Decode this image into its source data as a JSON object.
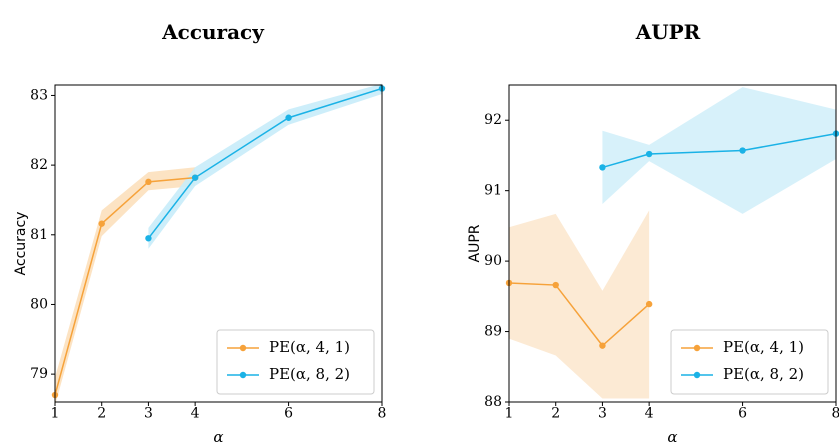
{
  "chart_data": [
    {
      "type": "line",
      "title": "Accuracy",
      "xlabel": "α",
      "ylabel": "Accuracy",
      "xlim": [
        1,
        8
      ],
      "ylim": [
        78.6,
        83.15
      ],
      "xticks": [
        1,
        2,
        3,
        4,
        6,
        8
      ],
      "yticks": [
        79,
        80,
        81,
        82,
        83
      ],
      "grid": false,
      "legend_position": "bottom-right",
      "series": [
        {
          "name": "PE(α, 4, 1)",
          "color": "#f6a23a",
          "band_color": "#fce0bd",
          "x": [
            1,
            2,
            3,
            4
          ],
          "y": [
            78.7,
            81.16,
            81.76,
            81.82
          ],
          "lower": [
            78.55,
            80.98,
            81.64,
            81.7
          ],
          "upper": [
            78.95,
            81.35,
            81.9,
            81.97
          ]
        },
        {
          "name": "PE(α, 8, 2)",
          "color": "#1ab2e6",
          "band_color": "#c8ecfa",
          "x": [
            3,
            4,
            6,
            8
          ],
          "y": [
            80.95,
            81.82,
            82.68,
            83.1
          ],
          "lower": [
            80.8,
            81.7,
            82.58,
            83.02
          ],
          "upper": [
            81.1,
            81.97,
            82.8,
            83.17
          ]
        }
      ]
    },
    {
      "type": "line",
      "title": "AUPR",
      "xlabel": "α",
      "ylabel": "AUPR",
      "xlim": [
        1,
        8
      ],
      "ylim": [
        88,
        92.5
      ],
      "xticks": [
        1,
        2,
        3,
        4,
        6,
        8
      ],
      "yticks": [
        88,
        89,
        90,
        91,
        92
      ],
      "grid": false,
      "legend_position": "bottom-right",
      "series": [
        {
          "name": "PE(α, 4, 1)",
          "color": "#f6a23a",
          "band_color": "#fce8cf",
          "x": [
            1,
            2,
            3,
            4
          ],
          "y": [
            89.69,
            89.66,
            88.8,
            89.39
          ],
          "lower": [
            88.9,
            88.66,
            88.05,
            88.05
          ],
          "upper": [
            90.48,
            90.67,
            89.58,
            90.72
          ]
        },
        {
          "name": "PE(α, 8, 2)",
          "color": "#1ab2e6",
          "band_color": "#d3eff9",
          "x": [
            3,
            4,
            6,
            8
          ],
          "y": [
            91.33,
            91.52,
            91.57,
            91.81
          ],
          "lower": [
            90.81,
            91.42,
            90.67,
            91.45
          ],
          "upper": [
            91.85,
            91.65,
            92.47,
            92.15
          ]
        }
      ]
    }
  ]
}
